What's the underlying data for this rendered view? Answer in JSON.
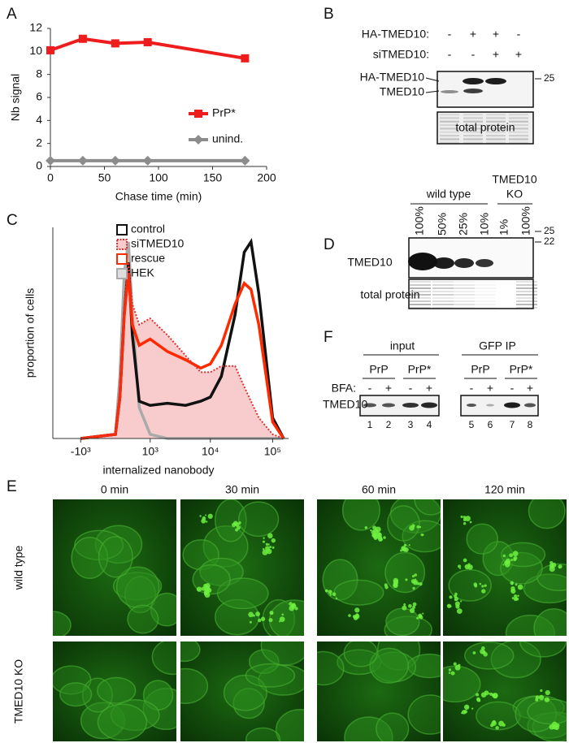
{
  "panel_labels": [
    "A",
    "B",
    "C",
    "D",
    "E",
    "F"
  ],
  "chart_data": [
    {
      "type": "line",
      "ylabel": "Nb signal",
      "xlabel": "Chase time (min)",
      "x": [
        0,
        30,
        60,
        90,
        180
      ],
      "series": [
        {
          "name": "PrP*",
          "color": "#ee1c1c",
          "marker": "square",
          "values": [
            10.1,
            11.1,
            10.7,
            10.8,
            9.4
          ]
        },
        {
          "name": "unind.",
          "color": "#8c8c8c",
          "marker": "diamond",
          "values": [
            0.5,
            0.5,
            0.5,
            0.5,
            0.5
          ]
        }
      ],
      "xlim": [
        0,
        200
      ],
      "xticks": [
        0,
        50,
        100,
        150,
        200
      ],
      "ylim": [
        0,
        12
      ],
      "yticks": [
        0,
        2,
        4,
        6,
        8,
        10,
        12
      ]
    },
    {
      "type": "area",
      "ylabel": "proportion of cells",
      "xlabel": "internalized nanobody",
      "xscale": "biexponential",
      "x": [
        -1000,
        0,
        100,
        200,
        300,
        400,
        600,
        1000,
        2000,
        4000,
        7000,
        10000,
        15000,
        25000,
        35000,
        45000,
        60000,
        100000,
        150000
      ],
      "series": [
        {
          "name": "control",
          "color": "#111111",
          "values": [
            0,
            0.02,
            0.2,
            0.6,
            0.85,
            0.5,
            0.18,
            0.16,
            0.17,
            0.16,
            0.18,
            0.2,
            0.3,
            0.6,
            0.9,
            0.95,
            0.7,
            0.1,
            0
          ]
        },
        {
          "name": "siTMED10",
          "color": "#e03030",
          "dashed": true,
          "fill": "#f8cccc",
          "values": [
            0,
            0.02,
            0.25,
            0.65,
            0.85,
            0.65,
            0.55,
            0.58,
            0.5,
            0.4,
            0.32,
            0.32,
            0.35,
            0.35,
            0.25,
            0.18,
            0.1,
            0.02,
            0
          ]
        },
        {
          "name": "rescue",
          "color": "#ff2a00",
          "values": [
            0,
            0.02,
            0.2,
            0.6,
            0.8,
            0.55,
            0.45,
            0.48,
            0.42,
            0.38,
            0.34,
            0.36,
            0.45,
            0.65,
            0.75,
            0.72,
            0.55,
            0.08,
            0
          ]
        },
        {
          "name": "HEK",
          "color": "#aaaaaa",
          "values": [
            0,
            0.02,
            0.3,
            0.8,
            0.95,
            0.6,
            0.15,
            0.02,
            0,
            0,
            0,
            0,
            0,
            0,
            0,
            0,
            0,
            0,
            0
          ]
        }
      ],
      "xlim": [
        -3000,
        180000
      ],
      "xticks": [
        {
          "value": -1000,
          "label": "-10³"
        },
        {
          "value": 1000,
          "label": "10³"
        },
        {
          "value": 10000,
          "label": "10⁴"
        },
        {
          "value": 100000,
          "label": "10⁵"
        }
      ],
      "ylim": [
        0,
        1
      ]
    }
  ],
  "panel_b": {
    "row_labels": [
      "HA-TMED10:",
      "siTMED10:"
    ],
    "signs": [
      [
        "-",
        "+",
        "+",
        "-"
      ],
      [
        "-",
        "-",
        "+",
        "+"
      ]
    ],
    "band_labels": [
      "HA-TMED10",
      "TMED10"
    ],
    "marker": "25",
    "total_protein": "total protein"
  },
  "panel_d": {
    "group": "wild type",
    "ko_label": [
      "TMED10",
      "KO"
    ],
    "lanes": [
      "100%",
      "50%",
      "25%",
      "10%",
      "1%",
      "100%"
    ],
    "markers": [
      "25",
      "22"
    ],
    "band_label": "TMED10",
    "total_protein": "total protein"
  },
  "panel_e": {
    "times": [
      "0 min",
      "30 min",
      "60 min",
      "120 min"
    ],
    "rows": [
      "wild type",
      "TMED10 KO"
    ]
  },
  "panel_f": {
    "groups": [
      "input",
      "GFP IP"
    ],
    "constructs": [
      "PrP",
      "PrP*",
      "PrP",
      "PrP*"
    ],
    "treatment": "BFA:",
    "signs": [
      "-",
      "+",
      "-",
      "+",
      "-",
      "+",
      "-",
      "+"
    ],
    "band_label": "TMED10",
    "lanes": [
      "1",
      "2",
      "3",
      "4",
      "5",
      "6",
      "7",
      "8"
    ]
  }
}
